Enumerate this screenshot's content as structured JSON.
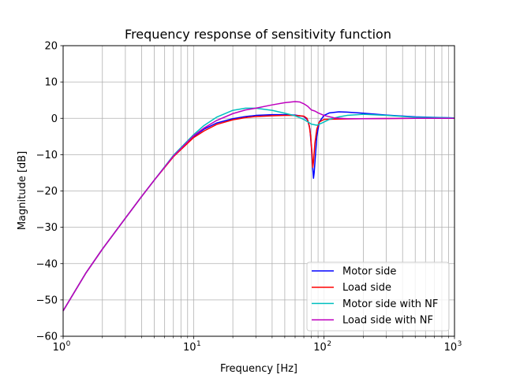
{
  "chart_data": {
    "type": "line",
    "title": "Frequency response of sensitivity function",
    "xlabel": "Frequency [Hz]",
    "ylabel": "Magnitude [dB]",
    "xscale": "log",
    "xlim": [
      1,
      1000
    ],
    "ylim": [
      -60,
      20
    ],
    "yticks": [
      -60,
      -50,
      -40,
      -30,
      -20,
      -10,
      0,
      10,
      20
    ],
    "xticks": [
      {
        "base": "10",
        "exp": "0"
      },
      {
        "base": "10",
        "exp": "1"
      },
      {
        "base": "10",
        "exp": "2"
      },
      {
        "base": "10",
        "exp": "3"
      }
    ],
    "grid": true,
    "legend_position": "lower-right",
    "series": [
      {
        "name": "Motor side",
        "color": "#0000ff",
        "points": [
          [
            1,
            -53
          ],
          [
            1.5,
            -42.5
          ],
          [
            2,
            -36
          ],
          [
            3,
            -27.5
          ],
          [
            4,
            -21.5
          ],
          [
            5,
            -17
          ],
          [
            7,
            -10.5
          ],
          [
            10,
            -5
          ],
          [
            12,
            -3
          ],
          [
            15,
            -1.3
          ],
          [
            20,
            -0.1
          ],
          [
            25,
            0.5
          ],
          [
            30,
            0.8
          ],
          [
            40,
            1
          ],
          [
            50,
            1
          ],
          [
            60,
            0.9
          ],
          [
            70,
            0.5
          ],
          [
            75,
            -0.5
          ],
          [
            78,
            -3
          ],
          [
            80,
            -8
          ],
          [
            82,
            -14
          ],
          [
            83,
            -16.5
          ],
          [
            84,
            -15
          ],
          [
            86,
            -10
          ],
          [
            88,
            -5
          ],
          [
            92,
            -1
          ],
          [
            100,
            0.8
          ],
          [
            110,
            1.5
          ],
          [
            130,
            1.8
          ],
          [
            150,
            1.7
          ],
          [
            200,
            1.4
          ],
          [
            300,
            0.9
          ],
          [
            500,
            0.4
          ],
          [
            1000,
            0.1
          ]
        ]
      },
      {
        "name": "Load side",
        "color": "#ff0000",
        "points": [
          [
            1,
            -53
          ],
          [
            1.5,
            -42.5
          ],
          [
            2,
            -36
          ],
          [
            3,
            -27.5
          ],
          [
            4,
            -21.5
          ],
          [
            5,
            -17
          ],
          [
            7,
            -10.6
          ],
          [
            10,
            -5.3
          ],
          [
            12,
            -3.5
          ],
          [
            15,
            -1.7
          ],
          [
            20,
            -0.4
          ],
          [
            25,
            0.2
          ],
          [
            30,
            0.5
          ],
          [
            40,
            0.7
          ],
          [
            50,
            0.8
          ],
          [
            60,
            0.8
          ],
          [
            70,
            0.6
          ],
          [
            74,
            0
          ],
          [
            77,
            -2
          ],
          [
            79,
            -5
          ],
          [
            81,
            -10
          ],
          [
            82,
            -13.5
          ],
          [
            83,
            -12
          ],
          [
            85,
            -7
          ],
          [
            88,
            -3
          ],
          [
            92,
            -1
          ],
          [
            100,
            -0.3
          ],
          [
            130,
            -0.2
          ],
          [
            200,
            -0.1
          ],
          [
            500,
            0
          ],
          [
            1000,
            0
          ]
        ]
      },
      {
        "name": "Motor side with NF",
        "color": "#00bfbf",
        "points": [
          [
            1,
            -53
          ],
          [
            1.5,
            -42.5
          ],
          [
            2,
            -36
          ],
          [
            3,
            -27.5
          ],
          [
            4,
            -21.5
          ],
          [
            5,
            -17
          ],
          [
            7,
            -10.2
          ],
          [
            10,
            -4.5
          ],
          [
            12,
            -2
          ],
          [
            15,
            0.3
          ],
          [
            20,
            2.2
          ],
          [
            25,
            2.8
          ],
          [
            30,
            2.8
          ],
          [
            40,
            2.2
          ],
          [
            50,
            1.4
          ],
          [
            60,
            0.7
          ],
          [
            70,
            -0.3
          ],
          [
            80,
            -1.6
          ],
          [
            88,
            -1.9
          ],
          [
            95,
            -1.4
          ],
          [
            110,
            -0.3
          ],
          [
            130,
            0.4
          ],
          [
            150,
            0.8
          ],
          [
            200,
            1.1
          ],
          [
            300,
            0.8
          ],
          [
            500,
            0.3
          ],
          [
            1000,
            0.1
          ]
        ]
      },
      {
        "name": "Load side with NF",
        "color": "#bf00bf",
        "points": [
          [
            1,
            -53
          ],
          [
            1.5,
            -42.5
          ],
          [
            2,
            -36
          ],
          [
            3,
            -27.5
          ],
          [
            4,
            -21.5
          ],
          [
            5,
            -17
          ],
          [
            7,
            -10.4
          ],
          [
            10,
            -4.8
          ],
          [
            12,
            -2.7
          ],
          [
            15,
            -0.6
          ],
          [
            20,
            1.3
          ],
          [
            25,
            2.3
          ],
          [
            30,
            2.8
          ],
          [
            40,
            3.7
          ],
          [
            50,
            4.3
          ],
          [
            60,
            4.6
          ],
          [
            65,
            4.5
          ],
          [
            70,
            4
          ],
          [
            75,
            3.3
          ],
          [
            80,
            2.3
          ],
          [
            85,
            2
          ],
          [
            90,
            1.5
          ],
          [
            100,
            0.8
          ],
          [
            120,
            0.1
          ],
          [
            150,
            -0.1
          ],
          [
            200,
            -0.1
          ],
          [
            500,
            0
          ],
          [
            1000,
            0
          ]
        ]
      }
    ]
  }
}
